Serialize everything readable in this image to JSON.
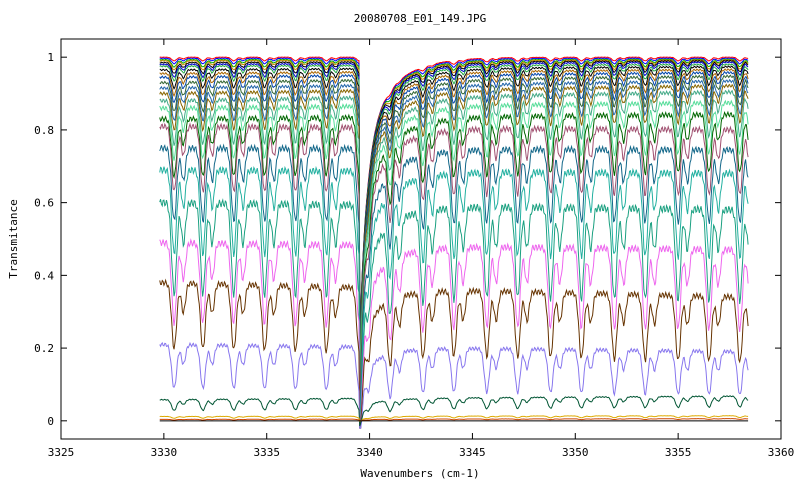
{
  "chart_data": {
    "type": "line",
    "title": "20080708_E01_149.JPG",
    "xlabel": "Wavenumbers (cm-1)",
    "ylabel": "Transmitance",
    "xlim": [
      3325,
      3360
    ],
    "ylim": [
      -0.05,
      1.05
    ],
    "xticks": [
      3325,
      3330,
      3335,
      3340,
      3345,
      3350,
      3355,
      3360
    ],
    "yticks": [
      0,
      0.2,
      0.4,
      0.6,
      0.8,
      1
    ],
    "ytick_labels": [
      "0",
      "0.2",
      "0.4",
      "0.6",
      "0.8",
      "1"
    ],
    "grid": false,
    "legend": "none",
    "x_data_range": [
      3329.8,
      3358.4
    ],
    "strong_absorption_x": 3339.5,
    "periodic_absorption_x": [
      3330.5,
      3331.9,
      3333.4,
      3334.9,
      3336.4,
      3337.9,
      3339.5,
      3341.0,
      3342.6,
      3344.1,
      3345.7,
      3347.2,
      3348.8,
      3350.3,
      3351.9,
      3353.4,
      3355.0,
      3356.5,
      3358.0
    ],
    "series": [
      {
        "color": "#ff0000",
        "start": 1.0,
        "end": 1.0,
        "dip_depth": 0.01
      },
      {
        "color": "#0000ff",
        "start": 0.997,
        "end": 0.997,
        "dip_depth": 0.015
      },
      {
        "color": "#00aa00",
        "start": 0.993,
        "end": 0.994,
        "dip_depth": 0.02
      },
      {
        "color": "#cc8800",
        "start": 0.99,
        "end": 0.992,
        "dip_depth": 0.025
      },
      {
        "color": "#000000",
        "start": 0.985,
        "end": 0.99,
        "dip_depth": 0.03
      },
      {
        "color": "#0000cc",
        "start": 0.98,
        "end": 0.986,
        "dip_depth": 0.035
      },
      {
        "color": "#22aa44",
        "start": 0.975,
        "end": 0.98,
        "dip_depth": 0.04
      },
      {
        "color": "#000000",
        "start": 0.965,
        "end": 0.974,
        "dip_depth": 0.05
      },
      {
        "color": "#aa6600",
        "start": 0.955,
        "end": 0.966,
        "dip_depth": 0.06
      },
      {
        "color": "#0044aa",
        "start": 0.945,
        "end": 0.958,
        "dip_depth": 0.07
      },
      {
        "color": "#336633",
        "start": 0.93,
        "end": 0.948,
        "dip_depth": 0.08
      },
      {
        "color": "#2266aa",
        "start": 0.915,
        "end": 0.935,
        "dip_depth": 0.09
      },
      {
        "color": "#886600",
        "start": 0.9,
        "end": 0.922,
        "dip_depth": 0.1
      },
      {
        "color": "#44aa88",
        "start": 0.88,
        "end": 0.905,
        "dip_depth": 0.12
      },
      {
        "color": "#55dd99",
        "start": 0.86,
        "end": 0.875,
        "dip_depth": 0.14
      },
      {
        "color": "#006600",
        "start": 0.83,
        "end": 0.843,
        "dip_depth": 0.16
      },
      {
        "color": "#a05070",
        "start": 0.81,
        "end": 0.8,
        "dip_depth": 0.18
      },
      {
        "color": "#116688",
        "start": 0.75,
        "end": 0.745,
        "dip_depth": 0.2
      },
      {
        "color": "#22b0a0",
        "start": 0.69,
        "end": 0.68,
        "dip_depth": 0.23
      },
      {
        "color": "#1aa080",
        "start": 0.6,
        "end": 0.58,
        "dip_depth": 0.25
      },
      {
        "color": "#ee66ee",
        "start": 0.49,
        "end": 0.47,
        "dip_depth": 0.22
      },
      {
        "color": "#663300",
        "start": 0.38,
        "end": 0.34,
        "dip_depth": 0.18
      },
      {
        "color": "#8877ee",
        "start": 0.21,
        "end": 0.19,
        "dip_depth": 0.12
      },
      {
        "color": "#005533",
        "start": 0.058,
        "end": 0.068,
        "dip_depth": 0.03
      },
      {
        "color": "#ddaa00",
        "start": 0.012,
        "end": 0.014,
        "dip_depth": 0.005
      },
      {
        "color": "#cc4400",
        "start": 0.004,
        "end": 0.006,
        "dip_depth": 0.002
      },
      {
        "color": "#000000",
        "start": 0.0,
        "end": 0.0,
        "dip_depth": 0.0
      }
    ]
  }
}
